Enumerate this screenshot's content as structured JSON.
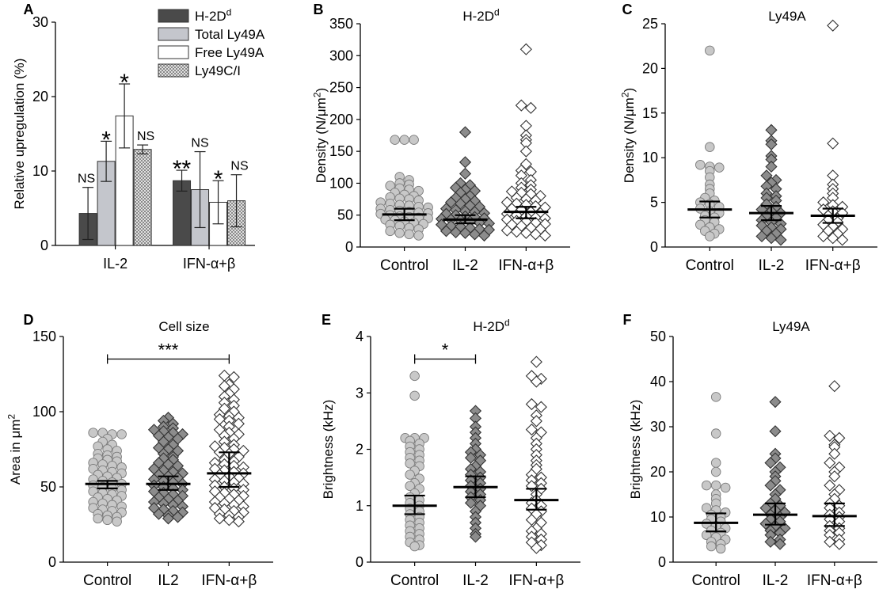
{
  "colors": {
    "hd_bar": "#4a4a4a",
    "total_bar": "#c4c6cc",
    "free_bar": "#ffffff",
    "hatch_bar": "#bdbdbd",
    "control_marker": "#c8c8c8",
    "il2_marker": "#8c8c8c",
    "ifn_marker": "#ffffff",
    "stroke": "#222222"
  },
  "chart_data": [
    {
      "panel": "A",
      "type": "bar",
      "title": "",
      "ylabel": "Relative upregulation (%)",
      "ylim": [
        0,
        30
      ],
      "yticks": [
        "0",
        "10",
        "20",
        "30"
      ],
      "categories": [
        "IL-2",
        "IFN-α+β"
      ],
      "series": [
        {
          "name": "H-2D",
          "sup": "d",
          "values": [
            4.3,
            8.7
          ],
          "errors": [
            3.5,
            1.4
          ]
        },
        {
          "name": "Total Ly49A",
          "values": [
            11.3,
            7.5
          ],
          "errors": [
            2.7,
            5.1
          ]
        },
        {
          "name": "Free Ly49A",
          "values": [
            17.4,
            5.8
          ],
          "errors": [
            4.3,
            2.9
          ]
        },
        {
          "name": "Ly49C/I",
          "values": [
            12.9,
            6.0
          ],
          "errors": [
            0.6,
            3.5
          ]
        }
      ],
      "annotations": [
        {
          "text": "NS",
          "category": 0,
          "series": 0
        },
        {
          "text": "*",
          "category": 0,
          "series": 1
        },
        {
          "text": "*",
          "category": 0,
          "series": 2
        },
        {
          "text": "NS",
          "category": 0,
          "series": 3
        },
        {
          "text": "**",
          "category": 1,
          "series": 0
        },
        {
          "text": "NS",
          "category": 1,
          "series": 1
        },
        {
          "text": "*",
          "category": 1,
          "series": 2
        },
        {
          "text": "NS",
          "category": 1,
          "series": 3
        }
      ]
    },
    {
      "panel": "B",
      "type": "scatter",
      "title": "H-2D",
      "title_sup": "d",
      "ylabel": "Density (N/μm",
      "ylabel_sup": "2",
      "ylabel_end": ")",
      "ylim": [
        0,
        350
      ],
      "yticks": [
        "0",
        "50",
        "100",
        "150",
        "200",
        "250",
        "300",
        "350"
      ],
      "categories": [
        "Control",
        "IL-2",
        "IFN-α+β"
      ],
      "groups": [
        {
          "mean": 51,
          "ci": [
            42,
            60
          ],
          "values": [
            168,
            168,
            168,
            110,
            105,
            100,
            98,
            96,
            92,
            90,
            88,
            85,
            82,
            80,
            78,
            76,
            75,
            73,
            70,
            68,
            66,
            65,
            63,
            62,
            60,
            58,
            57,
            55,
            54,
            53,
            52,
            50,
            48,
            47,
            46,
            45,
            43,
            42,
            40,
            38,
            36,
            35,
            33,
            30,
            28,
            25,
            22,
            20,
            18
          ]
        },
        {
          "mean": 43,
          "ci": [
            37,
            50
          ],
          "values": [
            180,
            133,
            115,
            100,
            97,
            93,
            90,
            88,
            85,
            80,
            77,
            75,
            72,
            70,
            68,
            65,
            63,
            60,
            58,
            56,
            55,
            53,
            52,
            50,
            48,
            47,
            45,
            44,
            43,
            42,
            40,
            38,
            37,
            35,
            33,
            32,
            30,
            28,
            27,
            25,
            23,
            22,
            20,
            18
          ]
        },
        {
          "mean": 55,
          "ci": [
            45,
            63
          ],
          "values": [
            310,
            222,
            218,
            190,
            175,
            168,
            163,
            150,
            130,
            120,
            118,
            112,
            105,
            100,
            97,
            93,
            90,
            87,
            85,
            83,
            80,
            77,
            75,
            73,
            70,
            68,
            66,
            64,
            62,
            60,
            58,
            55,
            53,
            52,
            50,
            48,
            46,
            45,
            43,
            41,
            40,
            38,
            36,
            35,
            33,
            30,
            28,
            26,
            24,
            22,
            20,
            18
          ]
        }
      ]
    },
    {
      "panel": "C",
      "type": "scatter",
      "title": "Ly49A",
      "ylabel": "Density (N/μm",
      "ylabel_sup": "2",
      "ylabel_end": ")",
      "ylim": [
        0,
        25
      ],
      "yticks": [
        "0",
        "5",
        "10",
        "15",
        "20",
        "25"
      ],
      "categories": [
        "Control",
        "IL-2",
        "IFN-α+β"
      ],
      "groups": [
        {
          "mean": 4.2,
          "ci": [
            3.3,
            5.1
          ],
          "values": [
            22,
            11.2,
            9.2,
            9.0,
            8.9,
            8.5,
            7.8,
            7.0,
            6.5,
            6.0,
            5.5,
            5.2,
            5.0,
            4.8,
            4.5,
            4.3,
            4.0,
            3.8,
            3.5,
            3.3,
            3.0,
            2.8,
            2.5,
            2.2,
            2.0,
            1.8,
            1.5,
            1.2
          ]
        },
        {
          "mean": 3.8,
          "ci": [
            3.0,
            4.6
          ],
          "values": [
            13.1,
            11.9,
            11.5,
            10.2,
            9.8,
            9.0,
            8.0,
            7.5,
            7.2,
            6.8,
            6.5,
            6.0,
            5.7,
            5.5,
            5.2,
            4.8,
            4.5,
            4.2,
            4.0,
            3.8,
            3.5,
            3.3,
            3.0,
            2.8,
            2.6,
            2.4,
            2.2,
            2.0,
            1.8,
            1.5,
            1.2,
            1.0,
            0.8
          ]
        },
        {
          "mean": 3.5,
          "ci": [
            2.7,
            4.3
          ],
          "values": [
            24.8,
            11.6,
            8.0,
            7.0,
            6.5,
            6.0,
            5.5,
            5.0,
            4.7,
            4.5,
            4.2,
            4.0,
            3.8,
            3.5,
            3.2,
            3.0,
            2.8,
            2.5,
            2.3,
            2.0,
            1.8,
            1.5,
            1.2,
            1.0,
            0.8
          ]
        }
      ]
    },
    {
      "panel": "D",
      "type": "scatter",
      "title": "Cell size",
      "ylabel": "Area in μm",
      "ylabel_sup": "2",
      "ylabel_end": "",
      "ylim": [
        0,
        150
      ],
      "yticks": [
        "0",
        "50",
        "100",
        "150"
      ],
      "categories": [
        "Control",
        "IL2",
        "IFN-α+β"
      ],
      "groups": [
        {
          "mean": 52,
          "ci": [
            49,
            54
          ],
          "values": [
            86,
            86,
            85,
            85,
            82,
            80,
            78,
            77,
            75,
            74,
            72,
            71,
            70,
            69,
            68,
            67,
            66,
            65,
            64,
            63,
            62,
            61,
            60,
            59,
            58,
            57,
            56,
            55,
            54,
            53,
            52,
            51,
            50,
            49,
            48,
            47,
            46,
            45,
            44,
            43,
            42,
            41,
            40,
            39,
            38,
            37,
            36,
            35,
            34,
            33,
            32,
            31,
            30,
            29,
            28,
            27
          ]
        },
        {
          "mean": 52,
          "ci": [
            48,
            57
          ],
          "values": [
            96,
            94,
            92,
            90,
            89,
            88,
            87,
            86,
            85,
            84,
            83,
            82,
            80,
            78,
            76,
            75,
            74,
            72,
            70,
            69,
            68,
            66,
            65,
            64,
            62,
            61,
            60,
            59,
            58,
            57,
            56,
            55,
            54,
            53,
            52,
            51,
            50,
            49,
            48,
            47,
            46,
            45,
            44,
            43,
            42,
            41,
            40,
            39,
            38,
            37,
            36,
            35,
            34,
            33,
            32,
            31,
            30,
            29
          ]
        },
        {
          "mean": 59,
          "ci": [
            50,
            73
          ],
          "values": [
            124,
            123,
            118,
            117,
            115,
            112,
            110,
            108,
            106,
            104,
            102,
            100,
            98,
            97,
            96,
            95,
            94,
            92,
            90,
            88,
            86,
            85,
            84,
            82,
            80,
            78,
            77,
            76,
            75,
            74,
            73,
            72,
            70,
            68,
            67,
            66,
            65,
            64,
            63,
            62,
            61,
            60,
            59,
            58,
            57,
            56,
            55,
            54,
            53,
            52,
            51,
            50,
            49,
            48,
            47,
            46,
            45,
            44,
            43,
            42,
            41,
            40,
            39,
            38,
            37,
            36,
            35,
            34,
            33,
            32,
            31,
            30,
            29,
            28,
            27
          ]
        }
      ],
      "bracket": {
        "from": 0,
        "to": 2,
        "label": "***",
        "y": 135
      }
    },
    {
      "panel": "E",
      "type": "scatter",
      "title": "H-2D",
      "title_sup": "d",
      "ylabel": "Brightness (kHz)",
      "ylabel_sup": "",
      "ylabel_end": "",
      "ylim": [
        0,
        4
      ],
      "yticks": [
        "0",
        "1",
        "2",
        "3",
        "4"
      ],
      "categories": [
        "Control",
        "IL-2",
        "IFN-α+β"
      ],
      "groups": [
        {
          "mean": 1.0,
          "ci": [
            0.85,
            1.18
          ],
          "values": [
            3.3,
            2.95,
            2.2,
            2.2,
            2.2,
            2.15,
            2.1,
            2.05,
            2.0,
            1.95,
            1.9,
            1.85,
            1.8,
            1.75,
            1.7,
            1.62,
            1.55,
            1.48,
            1.4,
            1.35,
            1.3,
            1.22,
            1.15,
            1.1,
            1.05,
            1.0,
            0.95,
            0.9,
            0.85,
            0.8,
            0.75,
            0.7,
            0.65,
            0.6,
            0.55,
            0.5,
            0.45,
            0.4,
            0.35,
            0.3,
            0.28
          ]
        },
        {
          "mean": 1.33,
          "ci": [
            1.15,
            1.52
          ],
          "values": [
            2.68,
            2.55,
            2.4,
            2.3,
            2.2,
            2.1,
            2.0,
            1.95,
            1.9,
            1.85,
            1.8,
            1.7,
            1.65,
            1.6,
            1.55,
            1.5,
            1.45,
            1.4,
            1.35,
            1.3,
            1.25,
            1.2,
            1.15,
            1.1,
            1.05,
            1.0,
            0.9,
            0.8,
            0.7,
            0.6,
            0.5,
            0.45
          ]
        },
        {
          "mean": 1.1,
          "ci": [
            0.93,
            1.3
          ],
          "values": [
            3.55,
            3.3,
            3.25,
            3.2,
            2.8,
            2.75,
            2.6,
            2.5,
            2.35,
            2.3,
            2.2,
            2.1,
            2.0,
            1.9,
            1.8,
            1.72,
            1.65,
            1.55,
            1.5,
            1.45,
            1.4,
            1.35,
            1.3,
            1.2,
            1.1,
            1.05,
            1.0,
            0.95,
            0.9,
            0.85,
            0.75,
            0.7,
            0.6,
            0.55,
            0.5,
            0.45,
            0.4,
            0.35,
            0.3,
            0.25
          ]
        }
      ],
      "bracket": {
        "from": 0,
        "to": 1,
        "label": "*",
        "y": 3.6
      }
    },
    {
      "panel": "F",
      "type": "scatter",
      "title": "Ly49A",
      "ylabel": "Brightness (kHz)",
      "ylabel_sup": "",
      "ylabel_end": "",
      "ylim": [
        0,
        50
      ],
      "yticks": [
        "0",
        "10",
        "20",
        "30",
        "40",
        "50"
      ],
      "categories": [
        "Control",
        "IL-2",
        "IFN-α+β"
      ],
      "groups": [
        {
          "mean": 8.7,
          "ci": [
            6.8,
            10.8
          ],
          "values": [
            36.6,
            28.5,
            22,
            20,
            17,
            17,
            16.5,
            15,
            14,
            13,
            12,
            11.5,
            11,
            10.5,
            10,
            9.5,
            9,
            8.5,
            8,
            7.5,
            7,
            6.5,
            6,
            5.5,
            5,
            4.5,
            4,
            3.5,
            3
          ]
        },
        {
          "mean": 10.5,
          "ci": [
            8.3,
            13
          ],
          "values": [
            35.5,
            29,
            24,
            23,
            22,
            21,
            20,
            19,
            18,
            17,
            16,
            15,
            14,
            13,
            12.5,
            12,
            11.5,
            11,
            10.5,
            10,
            9.5,
            9,
            8.5,
            8,
            7.5,
            7,
            6.5,
            6,
            5,
            4.5,
            4
          ]
        },
        {
          "mean": 10.2,
          "ci": [
            8,
            13
          ],
          "values": [
            39,
            28,
            27.5,
            26,
            25.5,
            24,
            22,
            21,
            20,
            19,
            17,
            16,
            15,
            14,
            13,
            12.5,
            12,
            11,
            10.5,
            10,
            9.5,
            9,
            8,
            7.5,
            7,
            6.5,
            6,
            5,
            4.5,
            4
          ]
        }
      ]
    }
  ]
}
